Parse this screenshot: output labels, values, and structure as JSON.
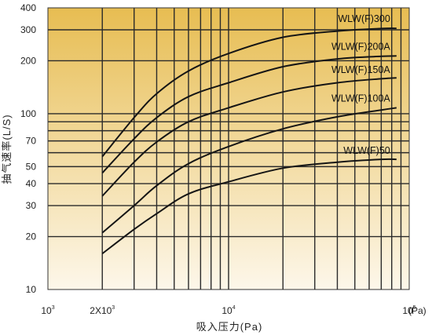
{
  "chart_data": {
    "type": "line",
    "title": "",
    "xlabel": "吸入压力(Pa)",
    "ylabel": "抽气速率(L/S)",
    "x_scale": "log",
    "y_scale": "log",
    "xlim": [
      1000,
      100000
    ],
    "ylim": [
      10,
      400
    ],
    "grid": true,
    "background": {
      "top": "#e7bd52",
      "bottom": "#fdf7ea"
    },
    "x_ticks": [
      {
        "value": 1000,
        "base": "10",
        "exp": "3"
      },
      {
        "value": 2000,
        "base": "2X10",
        "exp": "3"
      },
      {
        "value": 10000,
        "base": "10",
        "exp": "4"
      },
      {
        "value": 100000,
        "base": "10",
        "exp": "5"
      }
    ],
    "x_unit": "(Pa)",
    "y_ticks": [
      {
        "value": 10,
        "label": "10"
      },
      {
        "value": 20,
        "label": "20"
      },
      {
        "value": 30,
        "label": "30"
      },
      {
        "value": 40,
        "label": "40"
      },
      {
        "value": 50,
        "label": "50"
      },
      {
        "value": 70,
        "label": "70"
      },
      {
        "value": 100,
        "label": "100"
      },
      {
        "value": 200,
        "label": "200"
      },
      {
        "value": 300,
        "label": "300"
      },
      {
        "value": 400,
        "label": "400"
      }
    ],
    "x_gridlines": [
      2000,
      3000,
      4000,
      5000,
      6000,
      7000,
      8000,
      9000,
      10000,
      20000,
      30000,
      40000,
      50000,
      60000,
      70000,
      80000,
      90000
    ],
    "y_gridlines": [
      20,
      30,
      40,
      50,
      60,
      70,
      80,
      90,
      100,
      200,
      300
    ],
    "series": [
      {
        "name": "WLW(F)300",
        "x": [
          2000,
          3000,
          4000,
          6000,
          10000,
          20000,
          40000,
          70000,
          85000
        ],
        "y": [
          57,
          95,
          130,
          175,
          220,
          272,
          295,
          305,
          306
        ]
      },
      {
        "name": "WLW(F)200A",
        "x": [
          2000,
          3000,
          4000,
          6000,
          10000,
          20000,
          40000,
          70000,
          85000
        ],
        "y": [
          46,
          72,
          95,
          125,
          150,
          185,
          205,
          212,
          213
        ]
      },
      {
        "name": "WLW(F)150A",
        "x": [
          2000,
          3000,
          4000,
          6000,
          10000,
          20000,
          40000,
          70000,
          85000
        ],
        "y": [
          34,
          53,
          69,
          90,
          108,
          133,
          150,
          158,
          160
        ]
      },
      {
        "name": "WLW(F)100A",
        "x": [
          2000,
          3000,
          4000,
          6000,
          10000,
          20000,
          40000,
          70000,
          85000
        ],
        "y": [
          21,
          30,
          39,
          52,
          65,
          82,
          96,
          105,
          108
        ]
      },
      {
        "name": "WLW(F)50",
        "x": [
          2000,
          3000,
          4000,
          6000,
          10000,
          20000,
          40000,
          70000,
          85000
        ],
        "y": [
          16,
          22,
          27,
          35,
          41,
          49,
          53,
          55,
          55
        ]
      }
    ]
  }
}
